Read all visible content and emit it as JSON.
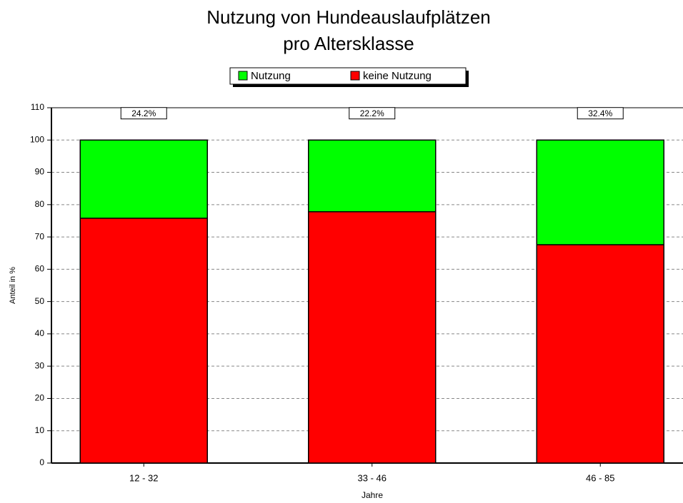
{
  "chart_data": {
    "type": "stacked_bar",
    "title": [
      "Nutzung von Hundeauslaufplätzen",
      "pro Altersklasse"
    ],
    "x_label": "Jahre",
    "y_label": "Anteil in %",
    "categories": [
      "12 - 32",
      "33 - 46",
      "46 - 85"
    ],
    "series": [
      {
        "name": "Nutzung",
        "color": "#00ff00",
        "values": [
          24.2,
          22.2,
          32.4
        ],
        "value_labels": [
          "24.2%",
          "22.2%",
          "32.4%"
        ]
      },
      {
        "name": "keine Nutzung",
        "color": "#ff0000",
        "values": [
          75.8,
          77.8,
          67.6
        ]
      }
    ],
    "ylim": [
      0,
      110
    ],
    "yticks": [
      0,
      10,
      20,
      30,
      40,
      50,
      60,
      70,
      80,
      90,
      100,
      110
    ],
    "grid": true
  }
}
